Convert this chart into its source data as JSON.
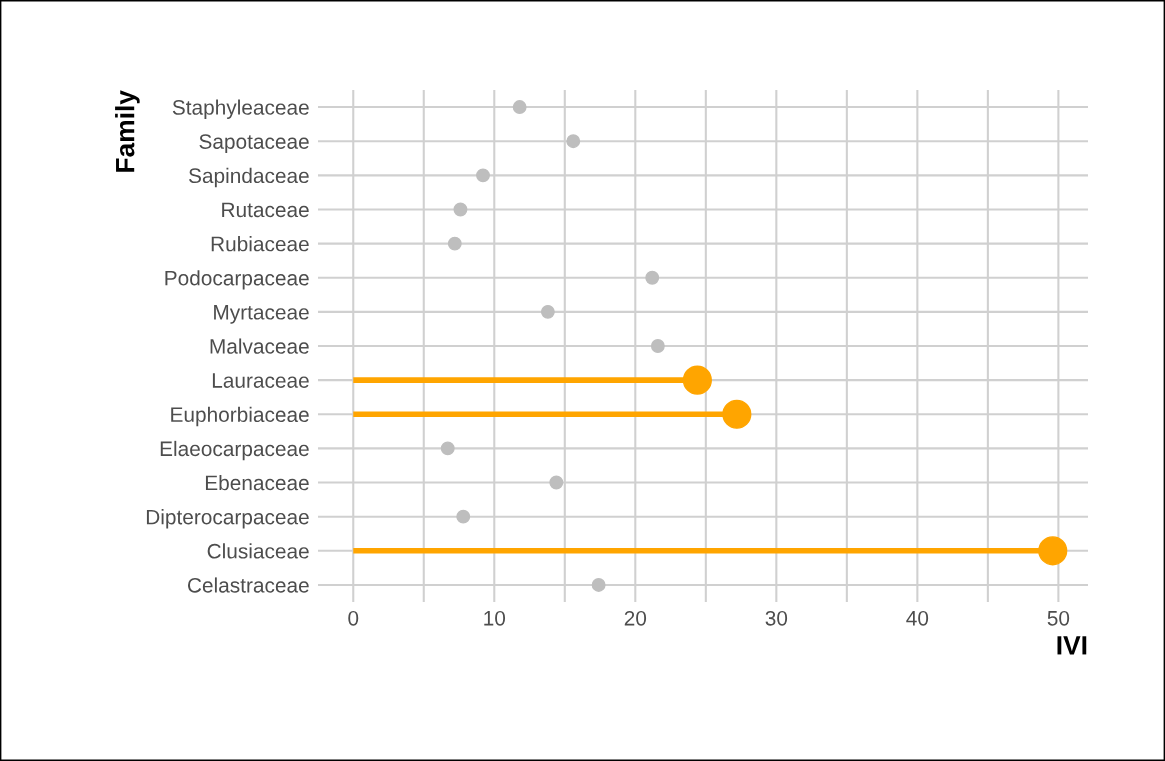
{
  "chart_data": {
    "type": "lollipop",
    "orientation": "horizontal",
    "xlabel": "IVI",
    "ylabel": "Family",
    "categories": [
      "Staphyleaceae",
      "Sapotaceae",
      "Sapindaceae",
      "Rutaceae",
      "Rubiaceae",
      "Podocarpaceae",
      "Myrtaceae",
      "Malvaceae",
      "Lauraceae",
      "Euphorbiaceae",
      "Elaeocarpaceae",
      "Ebenaceae",
      "Dipterocarpaceae",
      "Clusiaceae",
      "Celastraceae"
    ],
    "series": [
      {
        "type": "scatter",
        "color": "#bebebe",
        "values": [
          11.8,
          15.6,
          9.2,
          7.6,
          7.2,
          21.2,
          13.8,
          21.6,
          null,
          null,
          6.7,
          14.4,
          7.8,
          null,
          17.4
        ]
      },
      {
        "color": "#ffa500",
        "values": [
          null,
          null,
          null,
          null,
          null,
          null,
          null,
          null,
          24.4,
          27.2,
          null,
          null,
          null,
          49.6,
          null
        ]
      }
    ],
    "xlim": [
      -2.5,
      52.1
    ],
    "xticks": [
      0,
      {
        "value": 5,
        "label": null
      },
      10,
      {
        "value": 15,
        "label": null
      },
      20,
      {
        "value": 25,
        "label": null
      },
      30,
      {
        "value": 35,
        "label": null
      },
      40,
      {
        "value": 45,
        "label": null
      },
      50
    ],
    "grid": true,
    "marker": "circle",
    "legend": false
  }
}
